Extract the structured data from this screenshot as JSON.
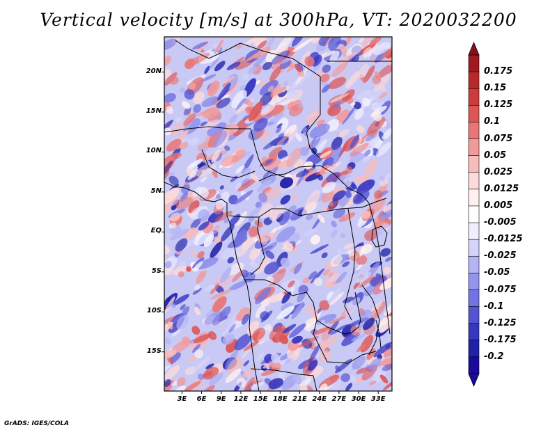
{
  "title": "Vertical velocity [m/s] at 300hPa, VT: 2020032200",
  "credit": "GrADS: IGES/COLA",
  "lat_labels": [
    {
      "text": "20N",
      "lat": 20
    },
    {
      "text": "15N",
      "lat": 15
    },
    {
      "text": "10N",
      "lat": 10
    },
    {
      "text": "5N",
      "lat": 5
    },
    {
      "text": "EQ",
      "lat": 0
    },
    {
      "text": "5S",
      "lat": -5
    },
    {
      "text": "10S",
      "lat": -10
    },
    {
      "text": "15S",
      "lat": -15
    }
  ],
  "lon_labels": [
    {
      "text": "3E",
      "lon": 3
    },
    {
      "text": "6E",
      "lon": 6
    },
    {
      "text": "9E",
      "lon": 9
    },
    {
      "text": "12E",
      "lon": 12
    },
    {
      "text": "15E",
      "lon": 15
    },
    {
      "text": "18E",
      "lon": 18
    },
    {
      "text": "21E",
      "lon": 21
    },
    {
      "text": "24E",
      "lon": 24
    },
    {
      "text": "27E",
      "lon": 27
    },
    {
      "text": "30E",
      "lon": 30
    },
    {
      "text": "33E",
      "lon": 33
    }
  ],
  "map_extent": {
    "lon_min": 0.3,
    "lon_max": 35.1,
    "lat_min": -19.9,
    "lat_max": 24.4
  },
  "colorbar": {
    "levels": [
      "0.175",
      "0.15",
      "0.125",
      "0.1",
      "0.075",
      "0.05",
      "0.025",
      "0.0125",
      "0.005",
      "-0.005",
      "-0.0125",
      "-0.025",
      "-0.05",
      "-0.075",
      "-0.1",
      "-0.125",
      "-0.175",
      "-0.2"
    ],
    "colors": [
      "#a01820",
      "#b82a2a",
      "#cc3c3c",
      "#dc5656",
      "#e87676",
      "#f29a9a",
      "#f7bcbc",
      "#fcdada",
      "#fff0f0",
      "#ffffff",
      "#eeeeff",
      "#d4d4fb",
      "#b4b4f4",
      "#9494ec",
      "#7272e0",
      "#5454d2",
      "#3636c0",
      "#2020a8",
      "#1a0a9a"
    ]
  }
}
